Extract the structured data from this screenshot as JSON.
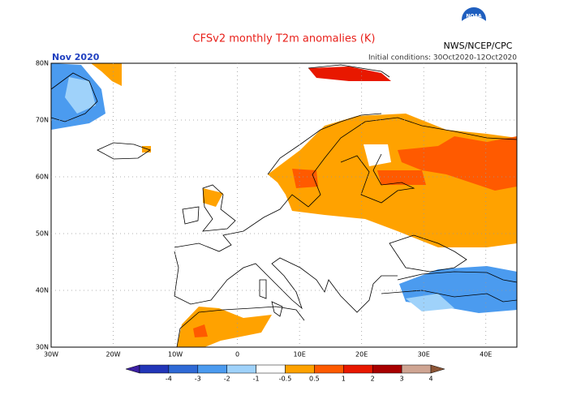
{
  "header": {
    "title": "CFSv2 monthly T2m anomalies (K)",
    "agency": "NWS/NCEP/CPC",
    "logo_text": "NOAA",
    "period": "Nov 2020",
    "initial_conditions": "Initial conditions: 30Oct2020-12Oct2020"
  },
  "map": {
    "lat_labels": [
      "80N",
      "70N",
      "60N",
      "50N",
      "40N",
      "30N"
    ],
    "lon_labels": [
      "30W",
      "20W",
      "10W",
      "0",
      "10E",
      "20E",
      "30E",
      "40E"
    ]
  },
  "colorbar": {
    "labels": [
      "-4",
      "-3",
      "-2",
      "-1",
      "-0.5",
      "0.5",
      "1",
      "2",
      "3",
      "4"
    ],
    "colors": [
      "#3b1fa3",
      "#2236b8",
      "#2f6ad6",
      "#4b9bef",
      "#9fd2fa",
      "#ffffff",
      "#ffa200",
      "#ff5a00",
      "#e81800",
      "#a80000",
      "#cfa593",
      "#8c5536"
    ]
  }
}
